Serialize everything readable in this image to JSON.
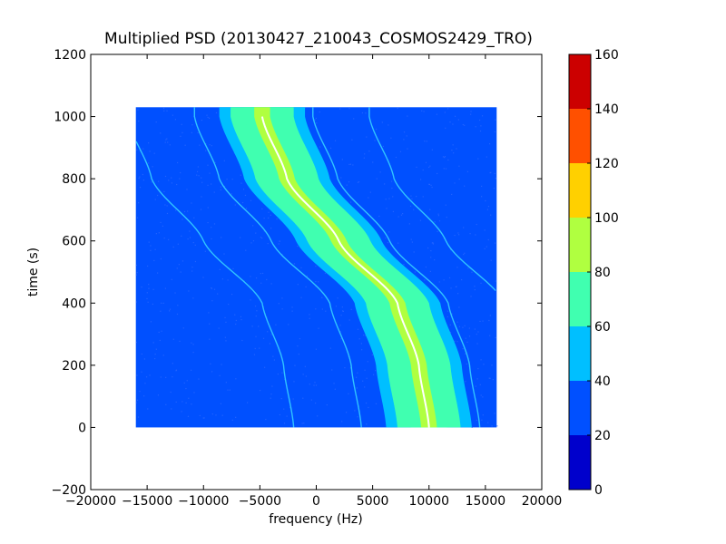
{
  "chart_data": {
    "type": "heatmap",
    "title": "Multiplied PSD (20130427_210043_COSMOS2429_TRO)",
    "xlabel": "frequency (Hz)",
    "ylabel": "time (s)",
    "xlim": [
      -20000,
      20000
    ],
    "ylim": [
      -200,
      1200
    ],
    "xticks": [
      -20000,
      -15000,
      -10000,
      -5000,
      0,
      5000,
      10000,
      15000,
      20000
    ],
    "xtick_labels": [
      "−20000",
      "−15000",
      "−10000",
      "−5000",
      "0",
      "5000",
      "10000",
      "15000",
      "20000"
    ],
    "yticks": [
      -200,
      0,
      200,
      400,
      600,
      800,
      1000,
      1200
    ],
    "ytick_labels": [
      "−200",
      "0",
      "200",
      "400",
      "600",
      "800",
      "1000",
      "1200"
    ],
    "data_extent": {
      "x": [
        -16000,
        16000
      ],
      "y": [
        0,
        1030
      ]
    },
    "background_level": 25,
    "main_trace": {
      "description_points": [
        [
          10000,
          0
        ],
        [
          9100,
          200
        ],
        [
          7200,
          400
        ],
        [
          2000,
          600
        ],
        [
          -2600,
          800
        ],
        [
          -4800,
          1000
        ]
      ],
      "band_levels": [
        {
          "halfwidth_hz": 3800,
          "level": 50
        },
        {
          "halfwidth_hz": 2800,
          "level": 65
        },
        {
          "halfwidth_hz": 1600,
          "level": 78
        },
        {
          "halfwidth_hz": 700,
          "level": 88
        }
      ],
      "center_color": "#ffffff"
    },
    "colorbar": {
      "min": 0,
      "max": 160,
      "ticks": [
        0,
        20,
        40,
        60,
        80,
        100,
        120,
        140,
        160
      ],
      "levels": [
        {
          "from": 0,
          "to": 20,
          "color": "#0000cc"
        },
        {
          "from": 20,
          "to": 40,
          "color": "#0050ff"
        },
        {
          "from": 40,
          "to": 60,
          "color": "#00bfff"
        },
        {
          "from": 60,
          "to": 80,
          "color": "#40ffb0"
        },
        {
          "from": 80,
          "to": 100,
          "color": "#b0ff40"
        },
        {
          "from": 100,
          "to": 120,
          "color": "#ffd000"
        },
        {
          "from": 120,
          "to": 140,
          "color": "#ff5000"
        },
        {
          "from": 140,
          "to": 160,
          "color": "#cc0000"
        }
      ]
    }
  }
}
